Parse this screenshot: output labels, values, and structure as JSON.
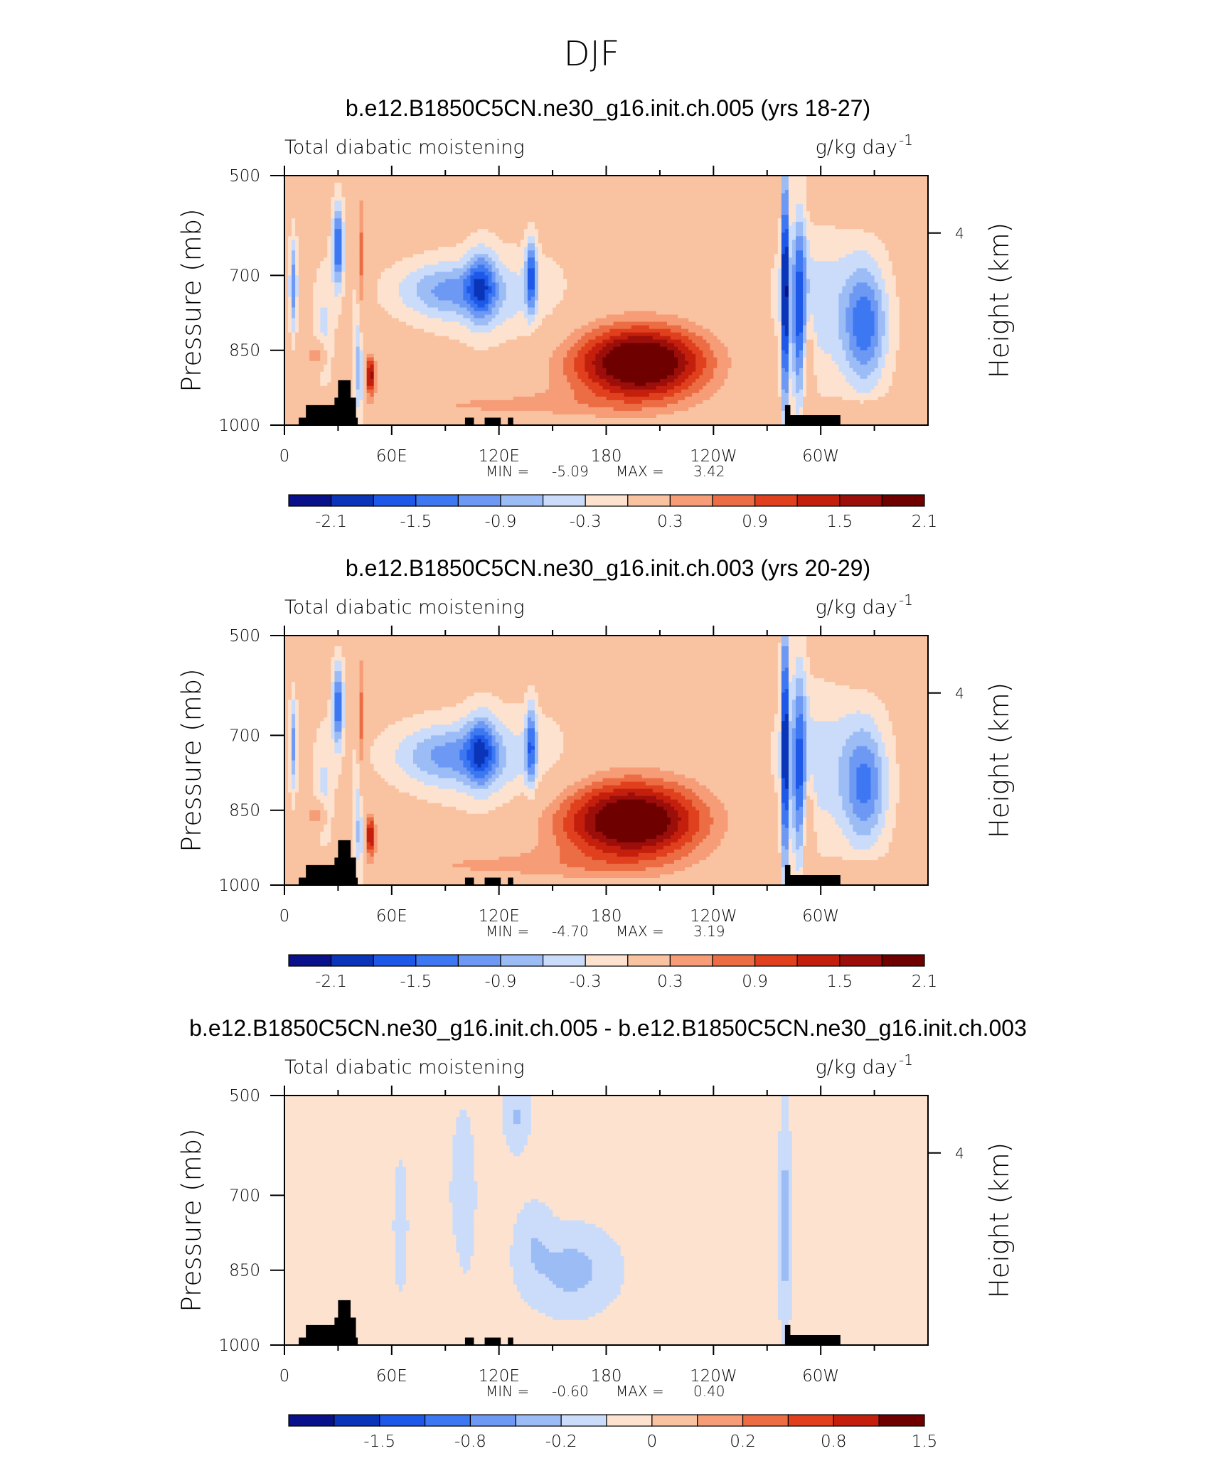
{
  "title": "DJF",
  "chart_data": [
    {
      "type": "heatmap",
      "title": "b.e12.B1850C5CN.ne30_g16.init.ch.005 (yrs 18-27)",
      "variable": "Total diabatic moistening",
      "units": "g/kg day",
      "units_exponent": "-1",
      "ylabel": "Pressure (mb)",
      "ylabel_right": "Height (km)",
      "xticks": [
        "0",
        "60E",
        "120E",
        "180",
        "120W",
        "60W"
      ],
      "yticks": [
        "500",
        "700",
        "850",
        "1000"
      ],
      "height_ticks": [
        "4"
      ],
      "ylim": [
        1000,
        500
      ],
      "min_label": "MIN =",
      "min_value": "-5.09",
      "max_label": "MAX =",
      "max_value": "3.42",
      "colorbar_labels": [
        "-2.1",
        "-1.5",
        "-0.9",
        "-0.3",
        "0.3",
        "0.9",
        "1.5",
        "2.1"
      ],
      "colorbar_colors": [
        "#08118a",
        "#0a35b8",
        "#1d58e8",
        "#3d78f2",
        "#6d99f4",
        "#9cbcf6",
        "#cbdcfa",
        "#fde3cf",
        "#f9c2a1",
        "#f69c77",
        "#ec6d44",
        "#e0401d",
        "#c41f0d",
        "#9b0e0a",
        "#6e0000"
      ],
      "blobs": [
        {
          "lon": 5,
          "p": 720,
          "rlon": 2,
          "rp": 90,
          "v": -1.3
        },
        {
          "lon": 30,
          "p": 640,
          "rlon": 3,
          "rp": 80,
          "v": -1.8
        },
        {
          "lon": 22,
          "p": 800,
          "rlon": 6,
          "rp": 120,
          "v": -0.5
        },
        {
          "lon": 42,
          "p": 880,
          "rlon": 3,
          "rp": 140,
          "v": -1.1
        },
        {
          "lon": 48,
          "p": 900,
          "rlon": 3,
          "rp": 40,
          "v": 1.9
        },
        {
          "lon": 43,
          "p": 700,
          "rlon": 2,
          "rp": 170,
          "v": 1.0
        },
        {
          "lon": 18,
          "p": 860,
          "rlon": 5,
          "rp": 25,
          "v": 0.9
        },
        {
          "lon": 90,
          "p": 730,
          "rlon": 28,
          "rp": 55,
          "v": -1.0
        },
        {
          "lon": 110,
          "p": 720,
          "rlon": 8,
          "rp": 70,
          "v": -1.2
        },
        {
          "lon": 138,
          "p": 700,
          "rlon": 3,
          "rp": 70,
          "v": -1.6
        },
        {
          "lon": 125,
          "p": 750,
          "rlon": 35,
          "rp": 100,
          "v": -0.5
        },
        {
          "lon": 200,
          "p": 875,
          "rlon": 35,
          "rp": 70,
          "v": 2.2
        },
        {
          "lon": 190,
          "p": 880,
          "rlon": 55,
          "rp": 110,
          "v": 0.5
        },
        {
          "lon": 110,
          "p": 960,
          "rlon": 80,
          "rp": 30,
          "v": 0.45
        },
        {
          "lon": 280,
          "p": 720,
          "rlon": 2,
          "rp": 260,
          "v": -2.4
        },
        {
          "lon": 288,
          "p": 760,
          "rlon": 4,
          "rp": 200,
          "v": -1.5
        },
        {
          "lon": 325,
          "p": 800,
          "rlon": 12,
          "rp": 120,
          "v": -1.4
        },
        {
          "lon": 300,
          "p": 760,
          "rlon": 25,
          "rp": 160,
          "v": -0.6
        },
        {
          "lon": 293,
          "p": 880,
          "rlon": 3,
          "rp": 100,
          "v": 0.8
        },
        {
          "lon": 330,
          "p": 560,
          "rlon": 25,
          "rp": 40,
          "v": 0.25
        },
        {
          "lon": 230,
          "p": 560,
          "rlon": 70,
          "rp": 50,
          "v": 0.25
        },
        {
          "lon": 330,
          "p": 970,
          "rlon": 30,
          "rp": 20,
          "v": 0.35
        }
      ]
    },
    {
      "type": "heatmap",
      "title": "b.e12.B1850C5CN.ne30_g16.init.ch.003 (yrs 20-29)",
      "variable": "Total diabatic moistening",
      "units": "g/kg day",
      "units_exponent": "-1",
      "ylabel": "Pressure (mb)",
      "ylabel_right": "Height (km)",
      "xticks": [
        "0",
        "60E",
        "120E",
        "180",
        "120W",
        "60W"
      ],
      "yticks": [
        "500",
        "700",
        "850",
        "1000"
      ],
      "height_ticks": [
        "4"
      ],
      "ylim": [
        1000,
        500
      ],
      "min_label": "MIN =",
      "min_value": "-4.70",
      "max_label": "MAX =",
      "max_value": "3.19",
      "colorbar_labels": [
        "-2.1",
        "-1.5",
        "-0.9",
        "-0.3",
        "0.3",
        "0.9",
        "1.5",
        "2.1"
      ],
      "colorbar_colors": [
        "#08118a",
        "#0a35b8",
        "#1d58e8",
        "#3d78f2",
        "#6d99f4",
        "#9cbcf6",
        "#cbdcfa",
        "#fde3cf",
        "#f9c2a1",
        "#f69c77",
        "#ec6d44",
        "#e0401d",
        "#c41f0d",
        "#9b0e0a",
        "#6e0000"
      ],
      "blobs": [
        {
          "lon": 5,
          "p": 720,
          "rlon": 2,
          "rp": 90,
          "v": -1.2
        },
        {
          "lon": 30,
          "p": 640,
          "rlon": 3,
          "rp": 80,
          "v": -1.7
        },
        {
          "lon": 22,
          "p": 800,
          "rlon": 6,
          "rp": 120,
          "v": -0.5
        },
        {
          "lon": 42,
          "p": 880,
          "rlon": 3,
          "rp": 140,
          "v": -1.0
        },
        {
          "lon": 48,
          "p": 900,
          "rlon": 3,
          "rp": 40,
          "v": 1.8
        },
        {
          "lon": 43,
          "p": 700,
          "rlon": 2,
          "rp": 170,
          "v": 1.0
        },
        {
          "lon": 18,
          "p": 860,
          "rlon": 5,
          "rp": 25,
          "v": 0.9
        },
        {
          "lon": 90,
          "p": 740,
          "rlon": 30,
          "rp": 60,
          "v": -1.0
        },
        {
          "lon": 110,
          "p": 730,
          "rlon": 8,
          "rp": 70,
          "v": -1.2
        },
        {
          "lon": 138,
          "p": 720,
          "rlon": 3,
          "rp": 80,
          "v": -1.4
        },
        {
          "lon": 125,
          "p": 760,
          "rlon": 38,
          "rp": 110,
          "v": -0.5
        },
        {
          "lon": 195,
          "p": 870,
          "rlon": 38,
          "rp": 75,
          "v": 2.1
        },
        {
          "lon": 185,
          "p": 880,
          "rlon": 58,
          "rp": 120,
          "v": 0.5
        },
        {
          "lon": 110,
          "p": 960,
          "rlon": 80,
          "rp": 30,
          "v": 0.45
        },
        {
          "lon": 280,
          "p": 720,
          "rlon": 2,
          "rp": 260,
          "v": -2.3
        },
        {
          "lon": 288,
          "p": 760,
          "rlon": 4,
          "rp": 200,
          "v": -1.4
        },
        {
          "lon": 325,
          "p": 800,
          "rlon": 12,
          "rp": 120,
          "v": -1.3
        },
        {
          "lon": 300,
          "p": 760,
          "rlon": 25,
          "rp": 160,
          "v": -0.6
        },
        {
          "lon": 293,
          "p": 880,
          "rlon": 3,
          "rp": 100,
          "v": 0.8
        },
        {
          "lon": 330,
          "p": 560,
          "rlon": 25,
          "rp": 40,
          "v": 0.25
        },
        {
          "lon": 200,
          "p": 570,
          "rlon": 40,
          "rp": 60,
          "v": 0.3
        },
        {
          "lon": 330,
          "p": 970,
          "rlon": 30,
          "rp": 20,
          "v": 0.35
        }
      ]
    },
    {
      "type": "heatmap",
      "title": "b.e12.B1850C5CN.ne30_g16.init.ch.005 - b.e12.B1850C5CN.ne30_g16.init.ch.003",
      "variable": "Total diabatic moistening",
      "units": "g/kg day",
      "units_exponent": "-1",
      "ylabel": "Pressure (mb)",
      "ylabel_right": "Height (km)",
      "xticks": [
        "0",
        "60E",
        "120E",
        "180",
        "120W",
        "60W"
      ],
      "yticks": [
        "500",
        "700",
        "850",
        "1000"
      ],
      "height_ticks": [
        "4"
      ],
      "ylim": [
        1000,
        500
      ],
      "min_label": "MIN =",
      "min_value": "-0.60",
      "max_label": "MAX =",
      "max_value": "0.40",
      "colorbar_labels": [
        "-1.5",
        "-0.8",
        "-0.2",
        "0",
        "0.2",
        "0.8",
        "1.5"
      ],
      "colorbar_colors": [
        "#08118a",
        "#0a35b8",
        "#1d58e8",
        "#3d78f2",
        "#6d99f4",
        "#9cbcf6",
        "#cbdcfa",
        "#fde3cf",
        "#f9c2a1",
        "#f69c77",
        "#ec6d44",
        "#e0401d",
        "#c41f0d",
        "#6e0000"
      ],
      "blobs": [
        {
          "lon": 160,
          "p": 850,
          "rlon": 18,
          "rp": 60,
          "v": -0.35
        },
        {
          "lon": 140,
          "p": 800,
          "rlon": 8,
          "rp": 60,
          "v": -0.2
        },
        {
          "lon": 280,
          "p": 760,
          "rlon": 2,
          "rp": 240,
          "v": -0.35
        },
        {
          "lon": 100,
          "p": 700,
          "rlon": 5,
          "rp": 120,
          "v": -0.15
        },
        {
          "lon": 65,
          "p": 760,
          "rlon": 3,
          "rp": 100,
          "v": -0.12
        },
        {
          "lon": 130,
          "p": 540,
          "rlon": 5,
          "rp": 50,
          "v": -0.25
        },
        {
          "lon": 20,
          "p": 650,
          "rlon": 8,
          "rp": 140,
          "v": 0.12
        },
        {
          "lon": 40,
          "p": 900,
          "rlon": 6,
          "rp": 60,
          "v": 0.18
        },
        {
          "lon": 90,
          "p": 850,
          "rlon": 6,
          "rp": 60,
          "v": 0.12
        },
        {
          "lon": 200,
          "p": 600,
          "rlon": 30,
          "rp": 80,
          "v": 0.12
        },
        {
          "lon": 340,
          "p": 750,
          "rlon": 6,
          "rp": 120,
          "v": 0.15
        },
        {
          "lon": 320,
          "p": 900,
          "rlon": 5,
          "rp": 60,
          "v": 0.13
        },
        {
          "lon": 265,
          "p": 650,
          "rlon": 5,
          "rp": 100,
          "v": 0.1
        }
      ]
    }
  ]
}
